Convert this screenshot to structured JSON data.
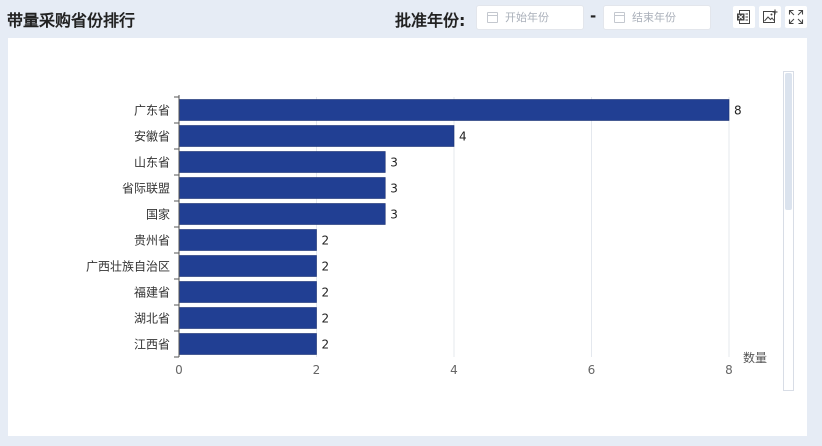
{
  "header": {
    "title": "带量采购省份排行",
    "filter_label": "批准年份:",
    "start_placeholder": "开始年份",
    "end_placeholder": "结束年份",
    "separator": "-",
    "tools": [
      {
        "name": "export-excel-icon"
      },
      {
        "name": "save-image-icon"
      },
      {
        "name": "fullscreen-icon"
      }
    ]
  },
  "chart_data": {
    "type": "bar",
    "orientation": "horizontal",
    "categories": [
      "广东省",
      "安徽省",
      "山东省",
      "省际联盟",
      "国家",
      "贵州省",
      "广西壮族自治区",
      "福建省",
      "湖北省",
      "江西省"
    ],
    "values": [
      8,
      4,
      3,
      3,
      3,
      2,
      2,
      2,
      2,
      2
    ],
    "xlabel": "数量",
    "ylabel": "",
    "xlim": [
      0,
      8
    ],
    "xticks": [
      0,
      2,
      4,
      6,
      8
    ],
    "grid": true,
    "bar_color": "#213f93",
    "data_labels": true
  }
}
